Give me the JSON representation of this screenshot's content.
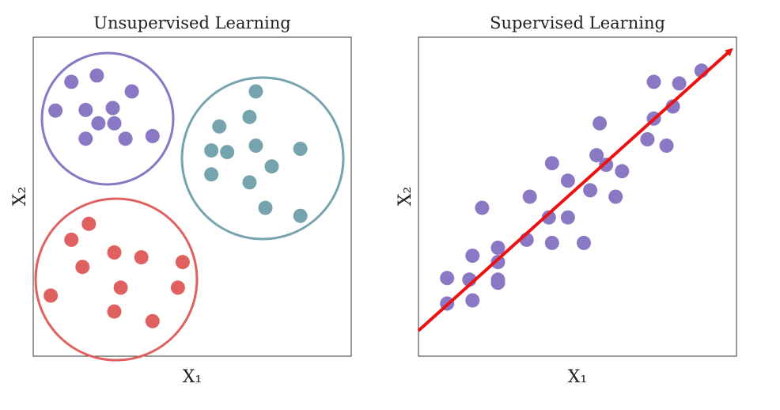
{
  "colors": {
    "purple": "#8a78c4",
    "teal": "#76a4ae",
    "red": "#e06060",
    "arrow": "#ee1111",
    "frame": "#333333"
  },
  "panels": [
    {
      "title": "Unsupervised Learning",
      "xlabel": "X₁",
      "ylabel": "X₂",
      "clusters": [
        {
          "color": "purple",
          "points": [
            [
              0.12,
              0.14
            ],
            [
              0.2,
              0.12
            ],
            [
              0.31,
              0.17
            ],
            [
              0.07,
              0.23
            ],
            [
              0.165,
              0.228
            ],
            [
              0.25,
              0.222
            ],
            [
              0.205,
              0.27
            ],
            [
              0.255,
              0.27
            ],
            [
              0.165,
              0.318
            ],
            [
              0.29,
              0.318
            ],
            [
              0.375,
              0.31
            ]
          ]
        },
        {
          "color": "teal",
          "points": [
            [
              0.7,
              0.17
            ],
            [
              0.68,
              0.25
            ],
            [
              0.585,
              0.28
            ],
            [
              0.56,
              0.355
            ],
            [
              0.61,
              0.36
            ],
            [
              0.7,
              0.34
            ],
            [
              0.84,
              0.35
            ],
            [
              0.56,
              0.43
            ],
            [
              0.75,
              0.405
            ],
            [
              0.68,
              0.455
            ],
            [
              0.73,
              0.535
            ],
            [
              0.84,
              0.56
            ]
          ]
        },
        {
          "color": "red",
          "points": [
            [
              0.175,
              0.585
            ],
            [
              0.12,
              0.635
            ],
            [
              0.255,
              0.675
            ],
            [
              0.34,
              0.69
            ],
            [
              0.47,
              0.705
            ],
            [
              0.155,
              0.72
            ],
            [
              0.275,
              0.785
            ],
            [
              0.455,
              0.785
            ],
            [
              0.055,
              0.81
            ],
            [
              0.255,
              0.86
            ],
            [
              0.375,
              0.89
            ]
          ]
        }
      ]
    },
    {
      "title": "Supervised Learning",
      "xlabel": "X₁",
      "ylabel": "X₂",
      "points": [
        [
          0.74,
          0.14
        ],
        [
          0.82,
          0.145
        ],
        [
          0.89,
          0.105
        ],
        [
          0.8,
          0.217
        ],
        [
          0.74,
          0.255
        ],
        [
          0.57,
          0.27
        ],
        [
          0.72,
          0.32
        ],
        [
          0.78,
          0.34
        ],
        [
          0.56,
          0.37
        ],
        [
          0.42,
          0.395
        ],
        [
          0.59,
          0.4
        ],
        [
          0.64,
          0.42
        ],
        [
          0.47,
          0.45
        ],
        [
          0.54,
          0.48
        ],
        [
          0.62,
          0.5
        ],
        [
          0.35,
          0.5
        ],
        [
          0.2,
          0.535
        ],
        [
          0.41,
          0.565
        ],
        [
          0.47,
          0.565
        ],
        [
          0.34,
          0.635
        ],
        [
          0.42,
          0.645
        ],
        [
          0.52,
          0.645
        ],
        [
          0.25,
          0.66
        ],
        [
          0.17,
          0.685
        ],
        [
          0.25,
          0.705
        ],
        [
          0.16,
          0.76
        ],
        [
          0.25,
          0.76
        ],
        [
          0.09,
          0.755
        ],
        [
          0.25,
          0.77
        ],
        [
          0.09,
          0.835
        ],
        [
          0.17,
          0.825
        ]
      ],
      "trend": {
        "from": [
          0.0,
          0.92
        ],
        "to": [
          0.995,
          0.03
        ]
      }
    }
  ]
}
